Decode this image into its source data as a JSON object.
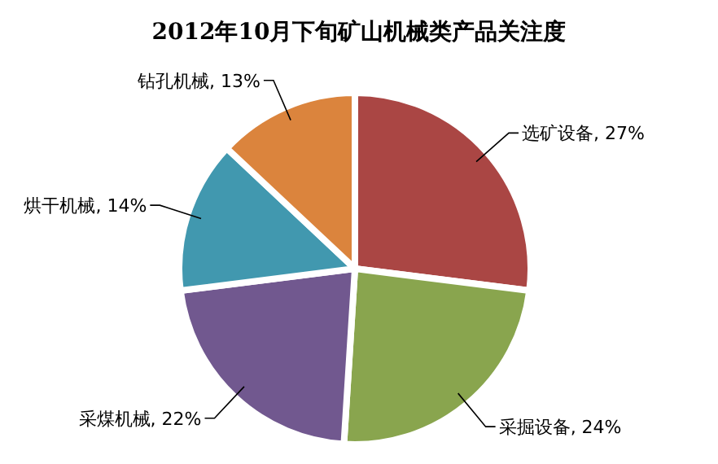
{
  "chart_data": {
    "type": "pie",
    "title": "2012年10月下旬矿山机械类产品关注度",
    "categories": [
      "选矿设备",
      "采掘设备",
      "采煤机械",
      "烘干机械",
      "钻孔机械"
    ],
    "values": [
      27,
      24,
      22,
      14,
      13
    ],
    "colors": [
      "#aa4644",
      "#89a54e",
      "#71588f",
      "#4198af",
      "#db843d"
    ],
    "value_labels": [
      ", 27%",
      ", 24%",
      ", 22%",
      ", 14%",
      ", 13%"
    ]
  }
}
